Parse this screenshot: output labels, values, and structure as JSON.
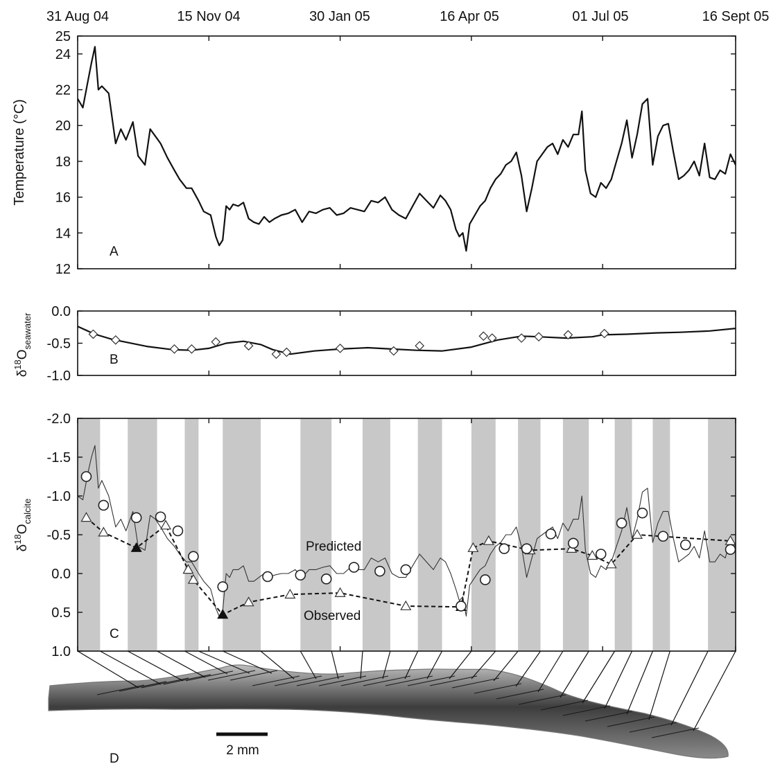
{
  "chart_data": [
    {
      "type": "line",
      "panel": "A",
      "panel_label": "A",
      "ylabel": "Temperature (°C)",
      "ylim": [
        12,
        25
      ],
      "yticks": [
        12,
        14,
        16,
        18,
        20,
        22,
        24,
        25
      ],
      "x_tick_labels": [
        "31 Aug 04",
        "15 Nov 04",
        "30 Jan 05",
        "16 Apr 05",
        "01 Jul 05",
        "16 Sept 05"
      ],
      "x_tick_dates": [
        "2004-08-31",
        "2004-11-15",
        "2005-01-30",
        "2005-04-16",
        "2005-07-01",
        "2005-09-16"
      ],
      "series": [
        {
          "x": [
            "2004-08-31",
            "2004-09-03",
            "2004-09-06",
            "2004-09-08",
            "2004-09-10",
            "2004-09-12",
            "2004-09-14",
            "2004-09-18",
            "2004-09-22",
            "2004-09-25",
            "2004-09-28",
            "2004-10-02",
            "2004-10-05",
            "2004-10-09",
            "2004-10-12",
            "2004-10-15",
            "2004-10-18",
            "2004-10-22",
            "2004-10-26",
            "2004-10-29",
            "2004-11-02",
            "2004-11-05",
            "2004-11-09",
            "2004-11-12",
            "2004-11-16",
            "2004-11-19",
            "2004-11-21",
            "2004-11-23",
            "2004-11-25",
            "2004-11-27",
            "2004-11-29",
            "2004-12-02",
            "2004-12-05",
            "2004-12-08",
            "2004-12-11",
            "2004-12-14",
            "2004-12-17",
            "2004-12-20",
            "2004-12-23",
            "2004-12-27",
            "2004-12-31",
            "2005-01-04",
            "2005-01-08",
            "2005-01-12",
            "2005-01-16",
            "2005-01-20",
            "2005-01-24",
            "2005-01-28",
            "2005-02-01",
            "2005-02-05",
            "2005-02-09",
            "2005-02-13",
            "2005-02-17",
            "2005-02-21",
            "2005-02-25",
            "2005-03-01",
            "2005-03-05",
            "2005-03-09",
            "2005-03-13",
            "2005-03-17",
            "2005-03-21",
            "2005-03-25",
            "2005-03-29",
            "2005-04-01",
            "2005-04-04",
            "2005-04-07",
            "2005-04-09",
            "2005-04-11",
            "2005-04-13",
            "2005-04-15",
            "2005-04-18",
            "2005-04-21",
            "2005-04-24",
            "2005-04-27",
            "2005-04-30",
            "2005-05-03",
            "2005-05-06",
            "2005-05-09",
            "2005-05-12",
            "2005-05-15",
            "2005-05-18",
            "2005-05-21",
            "2005-05-24",
            "2005-05-27",
            "2005-05-30",
            "2005-06-02",
            "2005-06-05",
            "2005-06-08",
            "2005-06-11",
            "2005-06-14",
            "2005-06-17",
            "2005-06-19",
            "2005-06-21",
            "2005-06-24",
            "2005-06-27",
            "2005-06-30",
            "2005-07-03",
            "2005-07-06",
            "2005-07-09",
            "2005-07-12",
            "2005-07-15",
            "2005-07-18",
            "2005-07-21",
            "2005-07-24",
            "2005-07-27",
            "2005-07-30",
            "2005-08-02",
            "2005-08-05",
            "2005-08-08",
            "2005-08-11",
            "2005-08-14",
            "2005-08-17",
            "2005-08-20",
            "2005-08-23",
            "2005-08-26",
            "2005-08-29",
            "2005-09-01",
            "2005-09-04",
            "2005-09-07",
            "2005-09-10",
            "2005-09-13",
            "2005-09-16"
          ],
          "y": [
            21.5,
            21.0,
            22.5,
            23.5,
            24.4,
            22.0,
            22.2,
            21.8,
            19.0,
            19.8,
            19.2,
            20.2,
            18.3,
            17.8,
            19.8,
            19.4,
            19.0,
            18.2,
            17.5,
            17.0,
            16.5,
            16.5,
            15.8,
            15.2,
            15.0,
            13.8,
            13.3,
            13.6,
            15.5,
            15.3,
            15.6,
            15.5,
            15.7,
            14.8,
            14.6,
            14.5,
            14.9,
            14.6,
            14.8,
            15.0,
            15.1,
            15.3,
            14.6,
            15.2,
            15.1,
            15.3,
            15.4,
            15.0,
            15.1,
            15.4,
            15.3,
            15.2,
            15.8,
            15.7,
            16.0,
            15.3,
            15.0,
            14.8,
            15.5,
            16.2,
            15.8,
            15.4,
            16.1,
            15.8,
            15.3,
            14.2,
            13.8,
            14.0,
            13.0,
            14.5,
            15.0,
            15.5,
            15.8,
            16.5,
            17.0,
            17.3,
            17.8,
            18.0,
            18.5,
            17.2,
            15.2,
            16.5,
            18.0,
            18.4,
            18.8,
            19.0,
            18.4,
            19.2,
            18.8,
            19.5,
            19.5,
            20.8,
            17.5,
            16.2,
            16.0,
            16.8,
            16.5,
            17.0,
            18.0,
            19.0,
            20.3,
            18.2,
            19.5,
            21.2,
            21.5,
            17.8,
            19.4,
            20.0,
            20.1,
            18.5,
            17.0,
            17.2,
            17.5,
            18.0,
            17.2,
            19.0,
            17.1,
            17.0,
            17.5,
            17.3,
            18.4,
            17.8
          ]
        }
      ]
    },
    {
      "type": "line",
      "panel": "B",
      "panel_label": "B",
      "ylabel_main": "δ",
      "ylabel_super": "18",
      "ylabel_rest": "O",
      "ylabel_sub": "seawater",
      "ylim": [
        -1.0,
        0.0
      ],
      "ytick_labels": [
        "0.0",
        "-0.5",
        "-1.0"
      ],
      "ytick_values": [
        0.0,
        -0.5,
        -1.0
      ],
      "series": [
        {
          "x": [
            "2004-08-31",
            "2004-09-10",
            "2004-09-20",
            "2004-10-10",
            "2004-10-25",
            "2004-11-05",
            "2004-11-15",
            "2004-11-25",
            "2004-12-05",
            "2004-12-15",
            "2004-12-22",
            "2005-01-01",
            "2005-01-15",
            "2005-01-30",
            "2005-02-15",
            "2005-03-01",
            "2005-03-15",
            "2005-03-30",
            "2005-04-16",
            "2005-05-01",
            "2005-05-15",
            "2005-05-25",
            "2005-06-10",
            "2005-06-25",
            "2005-07-01",
            "2005-07-15",
            "2005-08-01",
            "2005-08-15",
            "2005-09-01",
            "2005-09-16"
          ],
          "y": [
            -0.24,
            -0.36,
            -0.44,
            -0.55,
            -0.6,
            -0.61,
            -0.58,
            -0.5,
            -0.47,
            -0.52,
            -0.6,
            -0.67,
            -0.62,
            -0.59,
            -0.57,
            -0.59,
            -0.61,
            -0.62,
            -0.56,
            -0.45,
            -0.39,
            -0.4,
            -0.42,
            -0.4,
            -0.37,
            -0.36,
            -0.34,
            -0.33,
            -0.31,
            -0.27
          ]
        }
      ],
      "markers": [
        {
          "x": "2004-09-09",
          "y": -0.36
        },
        {
          "x": "2004-09-22",
          "y": -0.45
        },
        {
          "x": "2004-10-26",
          "y": -0.59
        },
        {
          "x": "2004-11-05",
          "y": -0.59
        },
        {
          "x": "2004-11-19",
          "y": -0.48
        },
        {
          "x": "2004-12-08",
          "y": -0.54
        },
        {
          "x": "2004-12-24",
          "y": -0.67
        },
        {
          "x": "2004-12-30",
          "y": -0.64
        },
        {
          "x": "2005-01-30",
          "y": -0.58
        },
        {
          "x": "2005-03-02",
          "y": -0.62
        },
        {
          "x": "2005-03-17",
          "y": -0.54
        },
        {
          "x": "2005-04-23",
          "y": -0.39
        },
        {
          "x": "2005-04-28",
          "y": -0.42
        },
        {
          "x": "2005-05-15",
          "y": -0.42
        },
        {
          "x": "2005-05-25",
          "y": -0.4
        },
        {
          "x": "2005-06-11",
          "y": -0.37
        },
        {
          "x": "2005-07-02",
          "y": -0.35
        }
      ]
    },
    {
      "type": "line",
      "panel": "C",
      "panel_label": "C",
      "ylabel_main": "δ",
      "ylabel_super": "18",
      "ylabel_rest": "O",
      "ylabel_sub": "calcite",
      "ylim": [
        1.0,
        -2.0
      ],
      "y_inverted": true,
      "ytick_labels": [
        "-2.0",
        "-1.5",
        "-1.0",
        "-0.5",
        "0.0",
        "0.5",
        "1.0"
      ],
      "ytick_values": [
        -2.0,
        -1.5,
        -1.0,
        -0.5,
        0.0,
        0.5,
        1.0
      ],
      "annotations": [
        {
          "text": "Predicted",
          "x": "2005-02-25",
          "y": -0.35
        },
        {
          "text": "Observed",
          "x": "2005-02-25",
          "y": 0.52
        }
      ],
      "shaded_bands": [
        [
          "2004-08-31",
          "2004-09-13"
        ],
        [
          "2004-09-29",
          "2004-10-16"
        ],
        [
          "2004-11-01",
          "2004-11-09"
        ],
        [
          "2004-11-23",
          "2004-12-15"
        ],
        [
          "2005-01-07",
          "2005-01-25"
        ],
        [
          "2005-02-12",
          "2005-02-28"
        ],
        [
          "2005-03-16",
          "2005-03-30"
        ],
        [
          "2005-04-16",
          "2005-04-30"
        ],
        [
          "2005-05-13",
          "2005-05-26"
        ],
        [
          "2005-06-08",
          "2005-06-23"
        ],
        [
          "2005-07-08",
          "2005-07-18"
        ],
        [
          "2005-07-30",
          "2005-08-09"
        ],
        [
          "2005-08-31",
          "2005-09-16"
        ]
      ],
      "series": [
        {
          "name": "Predicted",
          "x": [
            "2004-08-31",
            "2004-09-03",
            "2004-09-06",
            "2004-09-08",
            "2004-09-10",
            "2004-09-12",
            "2004-09-14",
            "2004-09-18",
            "2004-09-22",
            "2004-09-25",
            "2004-09-28",
            "2004-10-02",
            "2004-10-05",
            "2004-10-09",
            "2004-10-12",
            "2004-10-15",
            "2004-10-18",
            "2004-10-22",
            "2004-10-26",
            "2004-10-29",
            "2004-11-02",
            "2004-11-05",
            "2004-11-09",
            "2004-11-12",
            "2004-11-16",
            "2004-11-19",
            "2004-11-21",
            "2004-11-23",
            "2004-11-25",
            "2004-11-27",
            "2004-11-29",
            "2004-12-02",
            "2004-12-05",
            "2004-12-08",
            "2004-12-11",
            "2004-12-14",
            "2004-12-17",
            "2004-12-20",
            "2004-12-23",
            "2004-12-27",
            "2004-12-31",
            "2005-01-04",
            "2005-01-08",
            "2005-01-12",
            "2005-01-16",
            "2005-01-20",
            "2005-01-24",
            "2005-01-28",
            "2005-02-01",
            "2005-02-05",
            "2005-02-09",
            "2005-02-13",
            "2005-02-17",
            "2005-02-21",
            "2005-02-25",
            "2005-03-01",
            "2005-03-05",
            "2005-03-09",
            "2005-03-13",
            "2005-03-17",
            "2005-03-21",
            "2005-03-25",
            "2005-03-29",
            "2005-04-01",
            "2005-04-04",
            "2005-04-07",
            "2005-04-09",
            "2005-04-11",
            "2005-04-13",
            "2005-04-15",
            "2005-04-18",
            "2005-04-21",
            "2005-04-24",
            "2005-04-27",
            "2005-04-30",
            "2005-05-03",
            "2005-05-06",
            "2005-05-09",
            "2005-05-12",
            "2005-05-15",
            "2005-05-18",
            "2005-05-21",
            "2005-05-24",
            "2005-05-27",
            "2005-05-30",
            "2005-06-02",
            "2005-06-05",
            "2005-06-08",
            "2005-06-11",
            "2005-06-14",
            "2005-06-17",
            "2005-06-19",
            "2005-06-21",
            "2005-06-24",
            "2005-06-27",
            "2005-06-30",
            "2005-07-03",
            "2005-07-06",
            "2005-07-09",
            "2005-07-12",
            "2005-07-15",
            "2005-07-18",
            "2005-07-21",
            "2005-07-24",
            "2005-07-27",
            "2005-07-30",
            "2005-08-02",
            "2005-08-05",
            "2005-08-08",
            "2005-08-11",
            "2005-08-14",
            "2005-08-17",
            "2005-08-20",
            "2005-08-23",
            "2005-08-26",
            "2005-08-29",
            "2005-09-01",
            "2005-09-04",
            "2005-09-07",
            "2005-09-10",
            "2005-09-13",
            "2005-09-16"
          ],
          "y": [
            -1.0,
            -0.95,
            -1.3,
            -1.5,
            -1.65,
            -1.1,
            -1.2,
            -1.0,
            -0.6,
            -0.7,
            -0.55,
            -0.8,
            -0.35,
            -0.3,
            -0.75,
            -0.7,
            -0.6,
            -0.45,
            -0.35,
            -0.25,
            -0.15,
            -0.15,
            0.0,
            0.1,
            0.2,
            0.45,
            0.55,
            0.48,
            0.0,
            0.05,
            -0.05,
            -0.05,
            -0.1,
            0.1,
            0.1,
            0.05,
            0.0,
            0.05,
            0.02,
            0.0,
            0.0,
            -0.05,
            0.05,
            -0.05,
            -0.05,
            -0.08,
            -0.1,
            0.0,
            0.0,
            -0.08,
            -0.05,
            -0.05,
            -0.2,
            -0.15,
            -0.2,
            0.0,
            0.05,
            0.05,
            -0.1,
            -0.25,
            -0.15,
            -0.05,
            -0.2,
            -0.15,
            0.0,
            0.2,
            0.35,
            0.3,
            0.55,
            0.15,
            0.05,
            -0.05,
            -0.1,
            -0.25,
            -0.35,
            -0.4,
            -0.5,
            -0.5,
            -0.6,
            -0.35,
            0.05,
            -0.2,
            -0.45,
            -0.5,
            -0.55,
            -0.6,
            -0.45,
            -0.65,
            -0.55,
            -0.7,
            -0.7,
            -1.0,
            -0.3,
            0.0,
            0.05,
            -0.1,
            -0.05,
            -0.15,
            -0.35,
            -0.55,
            -0.85,
            -0.45,
            -0.7,
            -1.05,
            -1.1,
            -0.4,
            -0.65,
            -0.8,
            -0.8,
            -0.45,
            -0.15,
            -0.2,
            -0.25,
            -0.35,
            -0.2,
            -0.55,
            -0.15,
            -0.15,
            -0.25,
            -0.2,
            -0.45,
            -0.35
          ]
        },
        {
          "name": "Observed",
          "x": [
            "2004-09-05",
            "2004-09-15",
            "2004-10-04",
            "2004-10-21",
            "2004-11-03",
            "2004-11-06",
            "2004-11-23",
            "2004-12-08",
            "2005-01-01",
            "2005-01-30",
            "2005-03-09",
            "2005-04-10",
            "2005-04-17",
            "2005-04-26",
            "2005-05-20",
            "2005-06-13",
            "2005-06-25",
            "2005-07-06",
            "2005-07-21",
            "2005-09-13"
          ],
          "y": [
            -0.72,
            -0.53,
            -0.33,
            -0.62,
            -0.05,
            0.08,
            0.53,
            0.37,
            0.27,
            0.25,
            0.42,
            0.43,
            -0.33,
            -0.42,
            -0.3,
            -0.32,
            -0.23,
            -0.12,
            -0.5,
            -0.42
          ]
        }
      ],
      "filled_triangles": [
        {
          "x": "2004-10-04",
          "y": -0.33
        },
        {
          "x": "2004-11-23",
          "y": 0.53
        },
        {
          "x": "2005-04-10",
          "y": 0.43
        }
      ],
      "circles": [
        {
          "x": "2004-09-05",
          "y": -1.25
        },
        {
          "x": "2004-09-15",
          "y": -0.88
        },
        {
          "x": "2004-10-04",
          "y": -0.72
        },
        {
          "x": "2004-10-18",
          "y": -0.73
        },
        {
          "x": "2004-10-28",
          "y": -0.55
        },
        {
          "x": "2004-11-06",
          "y": -0.22
        },
        {
          "x": "2004-11-23",
          "y": 0.17
        },
        {
          "x": "2004-12-19",
          "y": 0.04
        },
        {
          "x": "2005-01-07",
          "y": 0.02
        },
        {
          "x": "2005-01-22",
          "y": 0.07
        },
        {
          "x": "2005-02-07",
          "y": -0.08
        },
        {
          "x": "2005-02-22",
          "y": -0.03
        },
        {
          "x": "2005-03-09",
          "y": -0.05
        },
        {
          "x": "2005-04-10",
          "y": 0.42
        },
        {
          "x": "2005-04-24",
          "y": 0.08
        },
        {
          "x": "2005-05-05",
          "y": -0.32
        },
        {
          "x": "2005-05-18",
          "y": -0.32
        },
        {
          "x": "2005-06-01",
          "y": -0.51
        },
        {
          "x": "2005-06-14",
          "y": -0.39
        },
        {
          "x": "2005-06-30",
          "y": -0.25
        },
        {
          "x": "2005-07-12",
          "y": -0.65
        },
        {
          "x": "2005-07-24",
          "y": -0.78
        },
        {
          "x": "2005-08-05",
          "y": -0.48
        },
        {
          "x": "2005-08-18",
          "y": -0.37
        },
        {
          "x": "2005-09-13",
          "y": -0.31
        }
      ]
    }
  ],
  "panel_d": {
    "label": "D",
    "scale_bar_label": "2 mm"
  }
}
